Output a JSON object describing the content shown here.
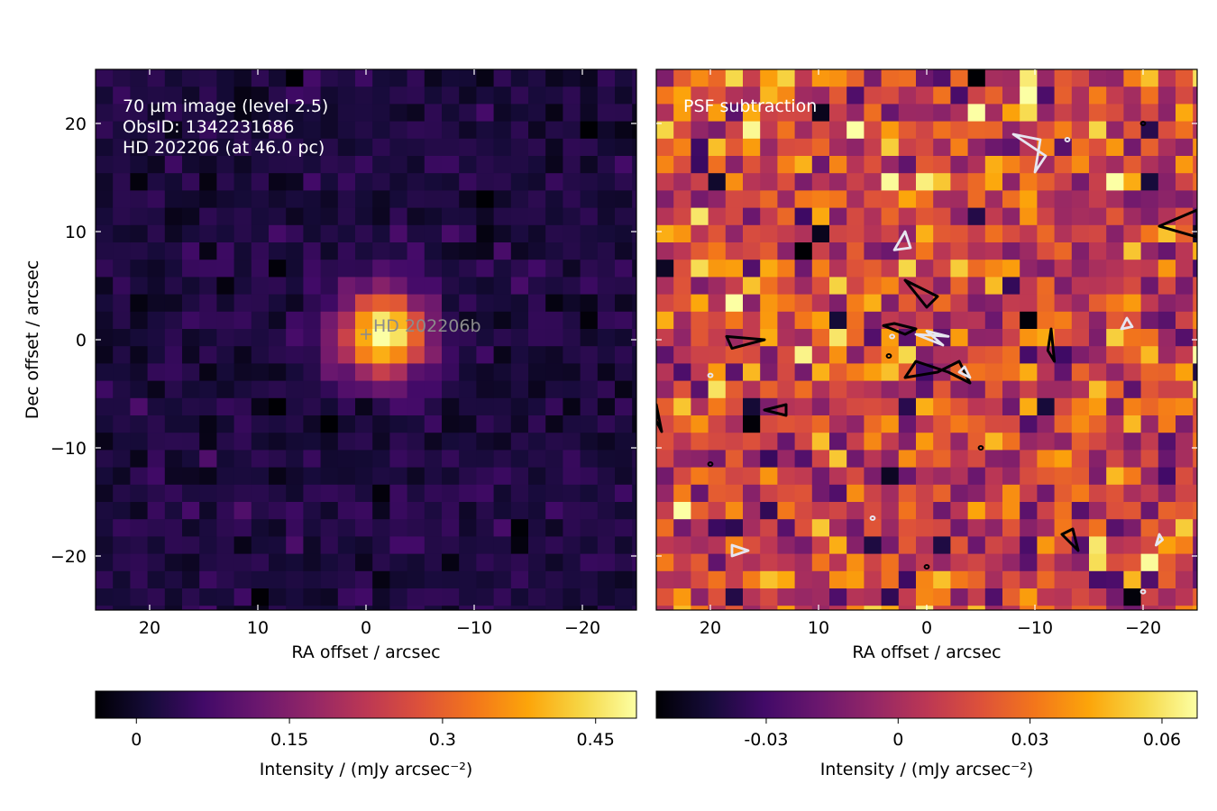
{
  "chart_data": [
    {
      "type": "heatmap",
      "panel": "left",
      "annotations": [
        "70 µm image (level 2.5)",
        "ObsID: 1342231686",
        "HD 202206 (at 46.0 pc)"
      ],
      "source_label": "HD 202206b",
      "source_marker": {
        "x": 0,
        "y": 0.5
      },
      "xlabel": "RA offset / arcsec",
      "ylabel": "Dec offset / arcsec",
      "xlim": [
        25,
        -25
      ],
      "ylim": [
        -25,
        25
      ],
      "xticks": [
        20,
        10,
        0,
        -10,
        -20
      ],
      "yticks": [
        20,
        10,
        0,
        -10,
        -20
      ],
      "xtick_labels": [
        "20",
        "10",
        "0",
        "−10",
        "−20"
      ],
      "ytick_labels": [
        "20",
        "10",
        "0",
        "−10",
        "−20"
      ],
      "pixel_size_arcsec": 1.6,
      "grid": false,
      "colormap": "inferno",
      "colorbar": {
        "label": "Intensity / (mJy arcsec⁻²)",
        "range": [
          -0.04,
          0.49
        ],
        "ticks": [
          0,
          0.15,
          0.3,
          0.45
        ],
        "tick_labels": [
          "0",
          "0.15",
          "0.3",
          "0.45"
        ]
      },
      "source_peak": {
        "ra": -1.5,
        "dec": 0.5,
        "value": 0.48
      },
      "background_level": 0.02
    },
    {
      "type": "heatmap",
      "panel": "right",
      "annotations": [
        "PSF subtraction"
      ],
      "xlabel": "RA offset / arcsec",
      "ylabel": "",
      "xlim": [
        25,
        -25
      ],
      "ylim": [
        -25,
        25
      ],
      "xticks": [
        20,
        10,
        0,
        -10,
        -20
      ],
      "xtick_labels": [
        "20",
        "10",
        "0",
        "−10",
        "−20"
      ],
      "pixel_size_arcsec": 1.6,
      "grid": false,
      "colormap": "inferno",
      "colorbar": {
        "label": "Intensity / (mJy arcsec⁻²)",
        "range": [
          -0.055,
          0.068
        ],
        "ticks": [
          -0.03,
          0,
          0.03,
          0.06
        ],
        "tick_labels": [
          "-0.03",
          "0",
          "0.03",
          "0.06"
        ]
      },
      "contours": [
        {
          "color": "#000000",
          "level": "positive"
        },
        {
          "color": "#e6e6f0",
          "level": "negative"
        }
      ]
    }
  ]
}
